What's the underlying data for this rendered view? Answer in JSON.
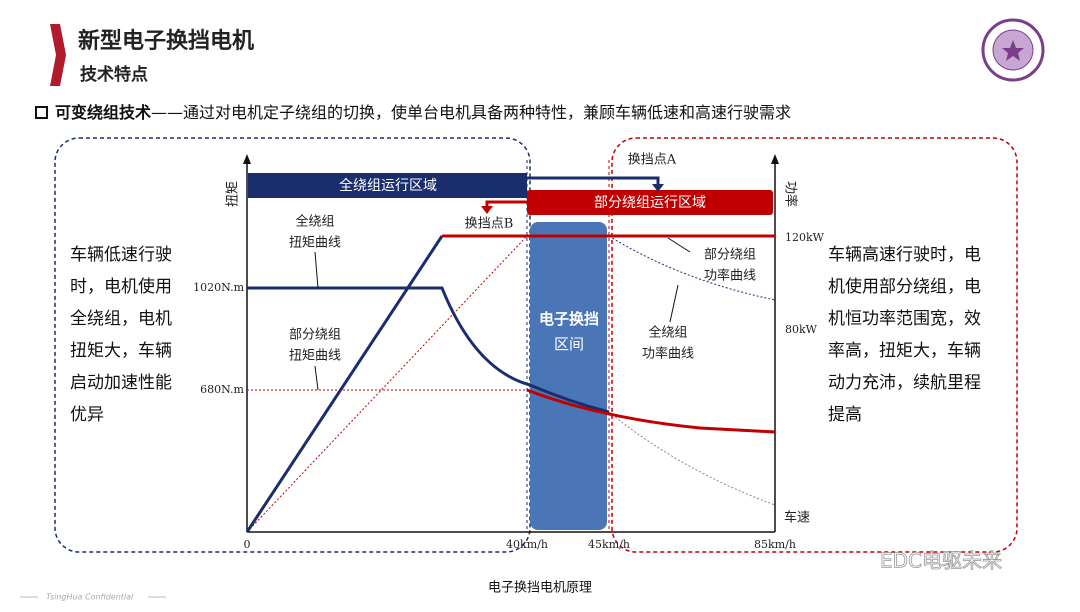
{
  "header": {
    "title": "新型电子换挡电机",
    "subtitle": "技术特点"
  },
  "intro": {
    "term": "可变绕组技术",
    "text": "——通过对电机定子绕组的切换，使单台电机具备两种特性，兼顾车辆低速和高速行驶需求"
  },
  "left_note": [
    "车辆低速行驶",
    "时，电机使用",
    "全绕组，电机",
    "扭矩大，车辆",
    "启动加速性能",
    "优异"
  ],
  "right_note": [
    "车辆高速行驶时，电",
    "机使用部分绕组，电",
    "机恒功率范围宽，效",
    "率高，扭矩大，车辆",
    "动力充沛，续航里程",
    "提高"
  ],
  "diagram": {
    "y_label": "扭矩",
    "y2_label": "功率",
    "x_label": "车速",
    "y_ticks": [
      "1020N.m",
      "680N.m"
    ],
    "y2_ticks": [
      "120kW",
      "80kW"
    ],
    "x_ticks": [
      "0",
      "40km/h",
      "45km/h",
      "85km/h"
    ],
    "full_region": "全绕组运行区域",
    "partial_region": "部分绕组运行区域",
    "shift_a": "换挡点A",
    "shift_b": "换挡点B",
    "shift_zone": [
      "电子换挡",
      "区间"
    ],
    "full_torque": [
      "全绕组",
      "扭矩曲线"
    ],
    "partial_torque": [
      "部分绕组",
      "扭矩曲线"
    ],
    "partial_power": [
      "部分绕组",
      "功率曲线"
    ],
    "full_power": [
      "全绕组",
      "功率曲线"
    ]
  },
  "caption": "电子换挡电机原理",
  "footer": "TsingHua Confidential",
  "watermark": "EDC电驱未来"
}
